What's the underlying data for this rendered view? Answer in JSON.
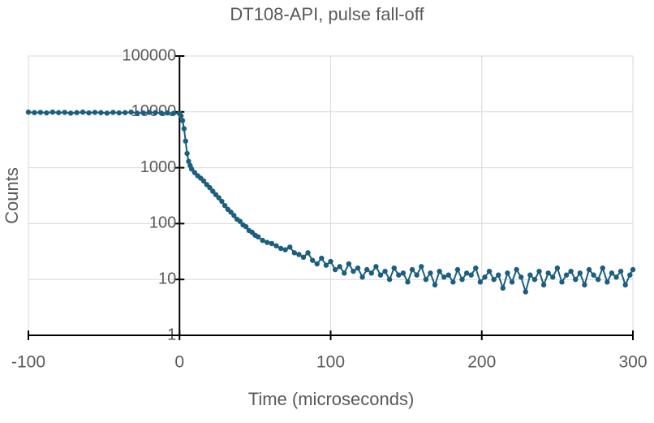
{
  "chart_data": {
    "type": "line",
    "title": "DT108-API, pulse fall-off",
    "x_label": "Time (microseconds)",
    "y_label": "Counts",
    "xlim": [
      -100,
      300
    ],
    "xticks": [
      -100,
      0,
      100,
      200,
      300
    ],
    "ylim": [
      1,
      100000
    ],
    "yticks": [
      1,
      10,
      100,
      1000,
      10000,
      100000
    ],
    "log_y": true,
    "grid": true,
    "series": [
      {
        "color": "#1b5e7e",
        "x": [
          -100,
          -96,
          -92,
          -88,
          -84,
          -80,
          -76,
          -72,
          -68,
          -64,
          -60,
          -56,
          -52,
          -48,
          -44,
          -40,
          -36,
          -32,
          -28,
          -24,
          -20,
          -16,
          -12,
          -8,
          -4,
          0,
          1,
          2,
          3,
          4,
          5,
          6,
          7,
          8,
          10,
          12,
          14,
          16,
          18,
          20,
          22,
          24,
          26,
          28,
          30,
          32,
          34,
          36,
          38,
          40,
          42,
          44,
          46,
          48,
          50,
          52,
          55,
          58,
          61,
          64,
          67,
          70,
          73,
          76,
          79,
          82,
          85,
          88,
          91,
          94,
          97,
          100,
          103,
          106,
          109,
          112,
          115,
          118,
          121,
          124,
          127,
          130,
          133,
          136,
          139,
          142,
          145,
          148,
          151,
          154,
          157,
          160,
          163,
          166,
          169,
          172,
          175,
          178,
          181,
          184,
          187,
          190,
          193,
          196,
          199,
          202,
          205,
          208,
          211,
          214,
          217,
          220,
          223,
          226,
          229,
          232,
          235,
          238,
          241,
          244,
          247,
          250,
          253,
          256,
          259,
          262,
          265,
          268,
          271,
          274,
          277,
          280,
          283,
          286,
          289,
          292,
          295,
          298,
          300
        ],
        "values": [
          9900,
          9700,
          9800,
          9600,
          9900,
          9700,
          9800,
          9500,
          9700,
          9900,
          9600,
          9800,
          9700,
          9500,
          9800,
          9600,
          9700,
          9900,
          9500,
          9600,
          9800,
          9700,
          9500,
          9600,
          9400,
          9300,
          8500,
          7000,
          5000,
          3000,
          1800,
          1300,
          1100,
          950,
          820,
          720,
          650,
          580,
          500,
          440,
          380,
          330,
          290,
          250,
          210,
          180,
          160,
          140,
          120,
          110,
          95,
          88,
          75,
          70,
          62,
          58,
          50,
          46,
          44,
          40,
          36,
          34,
          38,
          30,
          28,
          25,
          30,
          22,
          19,
          24,
          18,
          21,
          15,
          17,
          13,
          19,
          14,
          16,
          11,
          15,
          13,
          17,
          12,
          14,
          10,
          16,
          12,
          13,
          9,
          15,
          12,
          17,
          10,
          13,
          8,
          14,
          11,
          12,
          9,
          15,
          10,
          13,
          12,
          16,
          9,
          11,
          14,
          10,
          12,
          7,
          13,
          9,
          15,
          11,
          6,
          12,
          10,
          14,
          8,
          13,
          11,
          16,
          9,
          12,
          14,
          10,
          13,
          8,
          15,
          12,
          10,
          16,
          9,
          13,
          11,
          14,
          8,
          12,
          15
        ]
      }
    ]
  }
}
